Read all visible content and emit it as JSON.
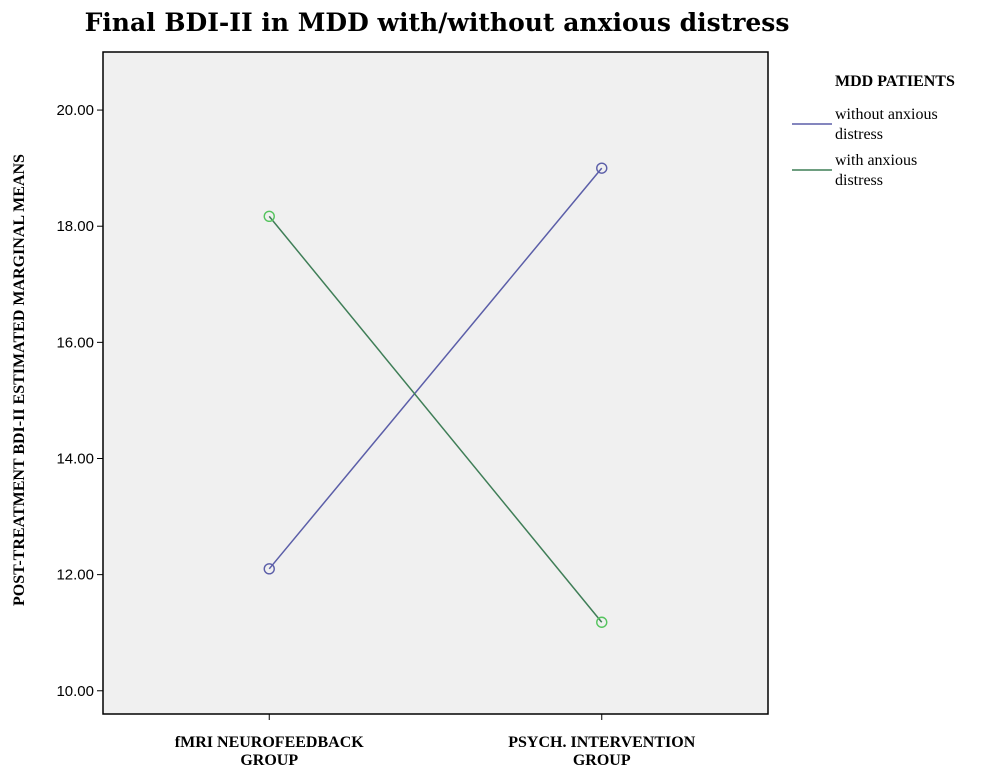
{
  "chart_data": {
    "type": "line",
    "title": "Final BDI-II in MDD with/without anxious distress",
    "xlabel": "",
    "ylabel": "POST-TREATMENT BDI-II ESTIMATED MARGINAL MEANS",
    "categories": [
      [
        "fMRI NEUROFEEDBACK",
        "GROUP"
      ],
      [
        "PSYCH. INTERVENTION",
        "GROUP"
      ]
    ],
    "ylim": [
      9.6,
      21.0
    ],
    "yticks": [
      10.0,
      12.0,
      14.0,
      16.0,
      18.0,
      20.0
    ],
    "ytick_labels": [
      "10.00",
      "12.00",
      "14.00",
      "16.00",
      "18.00",
      "20.00"
    ],
    "grid": false,
    "legend": {
      "title": "MDD PATIENTS",
      "placement": "right"
    },
    "series": [
      {
        "name": [
          "without anxious",
          "distress"
        ],
        "values": [
          12.1,
          19.0
        ],
        "line_color": "#5B5EA8",
        "marker_color": "#5B5EA8"
      },
      {
        "name": [
          "with anxious",
          "distress"
        ],
        "values": [
          18.17,
          11.18
        ],
        "line_color": "#3F7E57",
        "marker_color": "#55C45E"
      }
    ]
  },
  "style": {
    "plot_background": "#F0F0F0",
    "frame_color": "#000000"
  }
}
